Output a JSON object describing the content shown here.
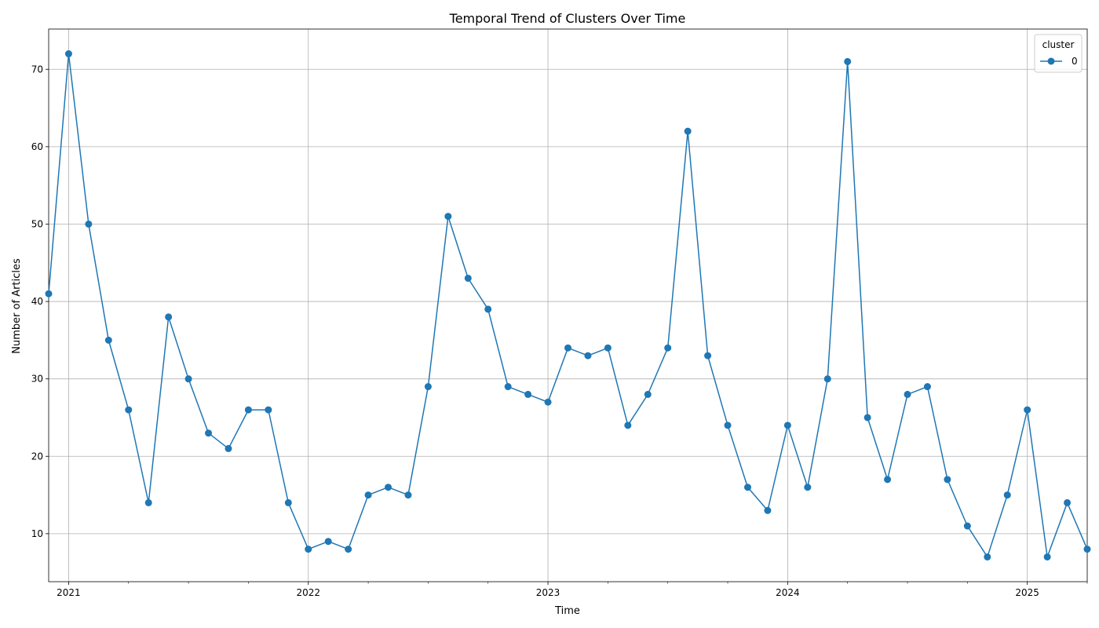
{
  "chart_data": {
    "type": "line",
    "title": "Temporal Trend of Clusters Over Time",
    "xlabel": "Time",
    "ylabel": "Number of Articles",
    "ylim": [
      3.8,
      75.2
    ],
    "yticks": [
      10,
      20,
      30,
      40,
      50,
      60,
      70
    ],
    "x_major_ticks": [
      "2021-01",
      "2022-01",
      "2023-01",
      "2024-01",
      "2025-01"
    ],
    "x_major_labels": [
      "2021",
      "2022",
      "2023",
      "2024",
      "2025"
    ],
    "grid": true,
    "legend": {
      "title": "cluster",
      "placement": "top-right"
    },
    "colors": {
      "series": "#1f77b4",
      "grid": "#b0b0b0",
      "axis": "#000000"
    },
    "x": [
      "2020-12",
      "2021-01",
      "2021-02",
      "2021-03",
      "2021-04",
      "2021-05",
      "2021-06",
      "2021-07",
      "2021-08",
      "2021-09",
      "2021-10",
      "2021-11",
      "2021-12",
      "2022-01",
      "2022-02",
      "2022-03",
      "2022-04",
      "2022-05",
      "2022-06",
      "2022-07",
      "2022-08",
      "2022-09",
      "2022-10",
      "2022-11",
      "2022-12",
      "2023-01",
      "2023-02",
      "2023-03",
      "2023-04",
      "2023-05",
      "2023-06",
      "2023-07",
      "2023-08",
      "2023-09",
      "2023-10",
      "2023-11",
      "2023-12",
      "2024-01",
      "2024-02",
      "2024-03",
      "2024-04",
      "2024-05",
      "2024-06",
      "2024-07",
      "2024-08",
      "2024-09",
      "2024-10",
      "2024-11",
      "2024-12",
      "2025-01",
      "2025-02",
      "2025-03",
      "2025-04"
    ],
    "series": [
      {
        "name": "0",
        "values": [
          41,
          72,
          50,
          35,
          26,
          14,
          38,
          30,
          23,
          21,
          26,
          26,
          14,
          8,
          9,
          8,
          15,
          16,
          15,
          29,
          51,
          43,
          39,
          29,
          28,
          27,
          34,
          33,
          34,
          24,
          28,
          34,
          62,
          33,
          24,
          16,
          13,
          24,
          16,
          30,
          71,
          25,
          17,
          28,
          29,
          17,
          11,
          7,
          15,
          26,
          7,
          14,
          8
        ]
      }
    ]
  }
}
